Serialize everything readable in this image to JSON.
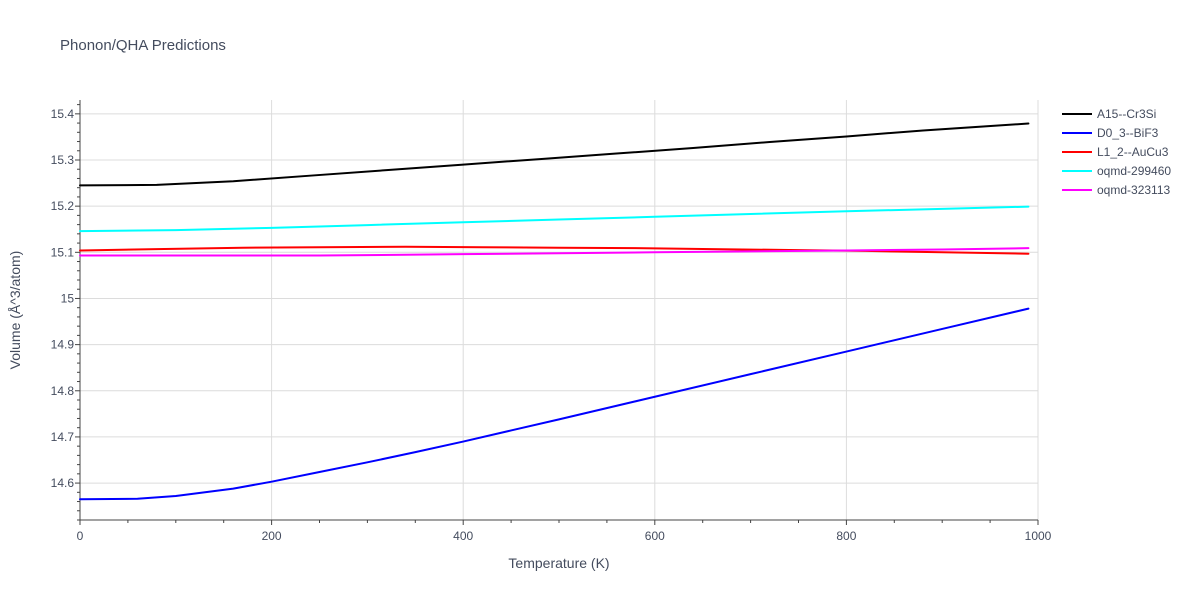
{
  "chart_data": {
    "type": "line",
    "title": "Phonon/QHA Predictions",
    "xlabel": "Temperature (K)",
    "ylabel": "Volume (Å^3/atom)",
    "xlim": [
      0,
      1000
    ],
    "ylim": [
      14.52,
      15.43
    ],
    "x_ticks": [
      0,
      200,
      400,
      600,
      800,
      1000
    ],
    "x_tick_labels": [
      "0",
      "200",
      "400",
      "600",
      "800",
      "1000"
    ],
    "y_ticks": [
      14.6,
      14.7,
      14.8,
      14.9,
      15.0,
      15.1,
      15.2,
      15.3,
      15.4
    ],
    "y_tick_labels": [
      "14.6",
      "14.7",
      "14.8",
      "14.9",
      "15",
      "15.1",
      "15.2",
      "15.3",
      "15.4"
    ],
    "grid": true,
    "legend_position": "top-right",
    "series": [
      {
        "name": "A15--Cr3Si",
        "color": "#000000",
        "x": [
          0,
          80,
          160,
          240,
          320,
          400,
          480,
          560,
          640,
          720,
          800,
          880,
          990
        ],
        "y": [
          15.245,
          15.246,
          15.254,
          15.266,
          15.278,
          15.29,
          15.302,
          15.314,
          15.326,
          15.339,
          15.351,
          15.364,
          15.379
        ]
      },
      {
        "name": "D0_3--BiF3",
        "color": "#0000ff",
        "x": [
          0,
          60,
          100,
          160,
          200,
          250,
          300,
          350,
          400,
          450,
          500,
          600,
          700,
          800,
          900,
          990
        ],
        "y": [
          14.565,
          14.566,
          14.572,
          14.588,
          14.603,
          14.624,
          14.645,
          14.667,
          14.69,
          14.714,
          14.738,
          14.787,
          14.836,
          14.885,
          14.934,
          14.978
        ]
      },
      {
        "name": "L1_2--AuCu3",
        "color": "#ff0000",
        "x": [
          0,
          80,
          170,
          250,
          340,
          420,
          500,
          580,
          660,
          740,
          820,
          900,
          990
        ],
        "y": [
          15.104,
          15.107,
          15.11,
          15.111,
          15.112,
          15.111,
          15.11,
          15.109,
          15.107,
          15.105,
          15.103,
          15.1,
          15.097
        ]
      },
      {
        "name": "oqmd-299460",
        "color": "#00ffff",
        "x": [
          0,
          100,
          200,
          300,
          400,
          500,
          600,
          700,
          800,
          900,
          990
        ],
        "y": [
          15.146,
          15.148,
          15.153,
          15.159,
          15.165,
          15.171,
          15.177,
          15.183,
          15.189,
          15.194,
          15.199
        ]
      },
      {
        "name": "oqmd-323113",
        "color": "#ff00ff",
        "x": [
          0,
          100,
          250,
          300,
          400,
          500,
          600,
          700,
          800,
          900,
          990
        ],
        "y": [
          15.093,
          15.093,
          15.093,
          15.094,
          15.096,
          15.098,
          15.1,
          15.102,
          15.104,
          15.106,
          15.109
        ]
      }
    ]
  }
}
